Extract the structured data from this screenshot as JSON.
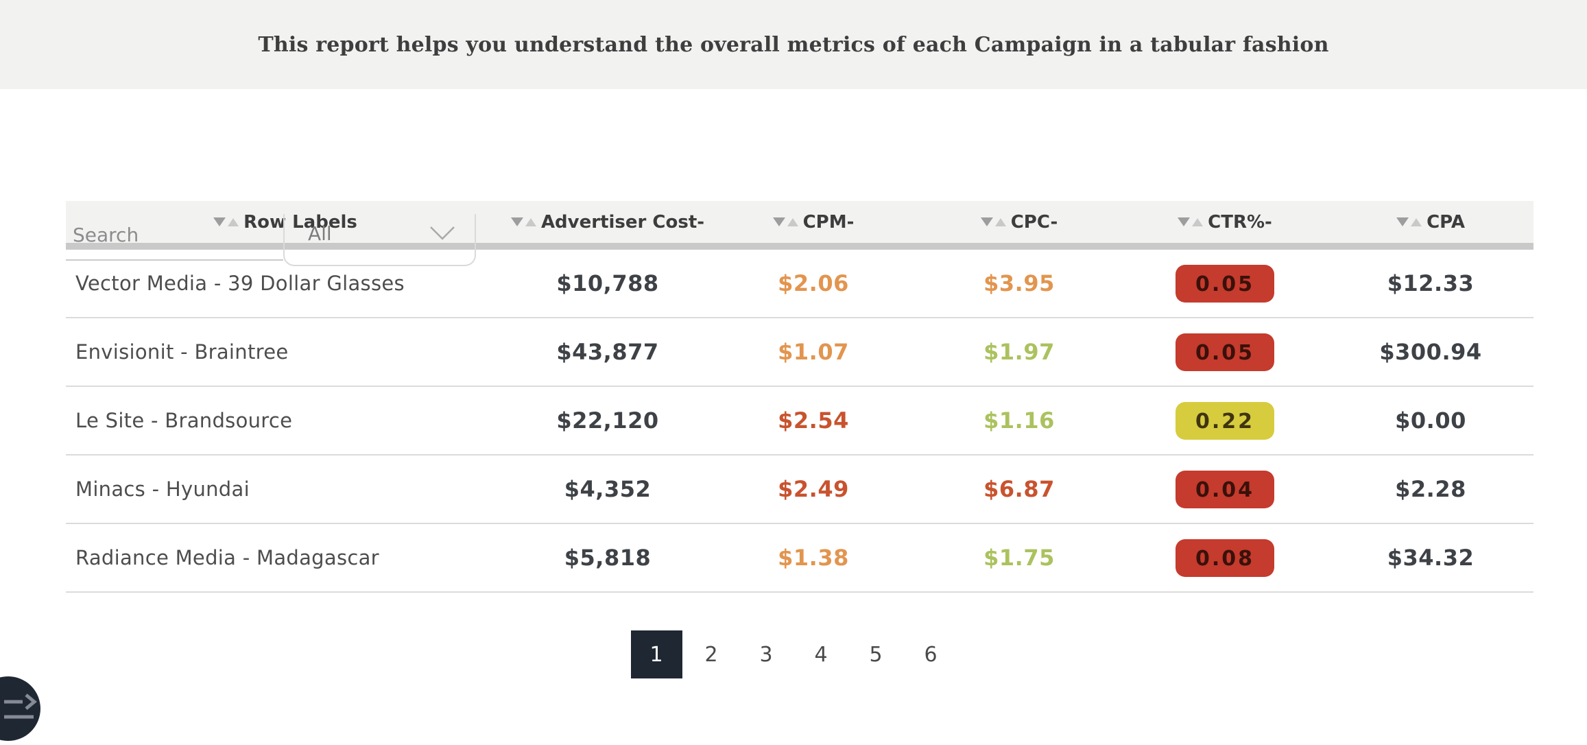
{
  "header": {
    "title": "This report helps you understand the overall metrics of each Campaign in a tabular fashion"
  },
  "toolbar": {
    "search_placeholder": "Search",
    "filter_value": "All"
  },
  "table": {
    "columns": [
      "Row Labels",
      "Advertiser Cost-",
      "CPM-",
      "CPC-",
      "CTR%-",
      "CPA"
    ],
    "rows": [
      {
        "label": "Vector Media - 39 Dollar Glasses",
        "advertiser_cost": "$10,788",
        "cpm": {
          "text": "$2.06",
          "color": "orange"
        },
        "cpc": {
          "text": "$3.95",
          "color": "orange"
        },
        "ctr": {
          "text": "0.05",
          "level": "red"
        },
        "cpa": "$12.33"
      },
      {
        "label": "Envisionit - Braintree",
        "advertiser_cost": "$43,877",
        "cpm": {
          "text": "$1.07",
          "color": "orange"
        },
        "cpc": {
          "text": "$1.97",
          "color": "green"
        },
        "ctr": {
          "text": "0.05",
          "level": "red"
        },
        "cpa": "$300.94"
      },
      {
        "label": "Le Site - Brandsource",
        "advertiser_cost": "$22,120",
        "cpm": {
          "text": "$2.54",
          "color": "red"
        },
        "cpc": {
          "text": "$1.16",
          "color": "green"
        },
        "ctr": {
          "text": "0.22",
          "level": "yellow"
        },
        "cpa": "$0.00"
      },
      {
        "label": "Minacs - Hyundai",
        "advertiser_cost": "$4,352",
        "cpm": {
          "text": "$2.49",
          "color": "red"
        },
        "cpc": {
          "text": "$6.87",
          "color": "red"
        },
        "ctr": {
          "text": "0.04",
          "level": "red"
        },
        "cpa": "$2.28"
      },
      {
        "label": "Radiance Media - Madagascar",
        "advertiser_cost": "$5,818",
        "cpm": {
          "text": "$1.38",
          "color": "orange"
        },
        "cpc": {
          "text": "$1.75",
          "color": "green"
        },
        "ctr": {
          "text": "0.08",
          "level": "red"
        },
        "cpa": "$34.32"
      }
    ]
  },
  "pagination": {
    "pages": [
      "1",
      "2",
      "3",
      "4",
      "5",
      "6"
    ],
    "active": "1"
  },
  "fab": {
    "icon": "expand-panel-icon"
  },
  "colors": {
    "orange": "#e2954f",
    "red": "#c8532e",
    "green": "#abc25e",
    "badge_red": "#c53b2d",
    "badge_yellow": "#d7cc3e",
    "pagination_active": "#1f2733",
    "header_band": "#f2f2f1"
  }
}
